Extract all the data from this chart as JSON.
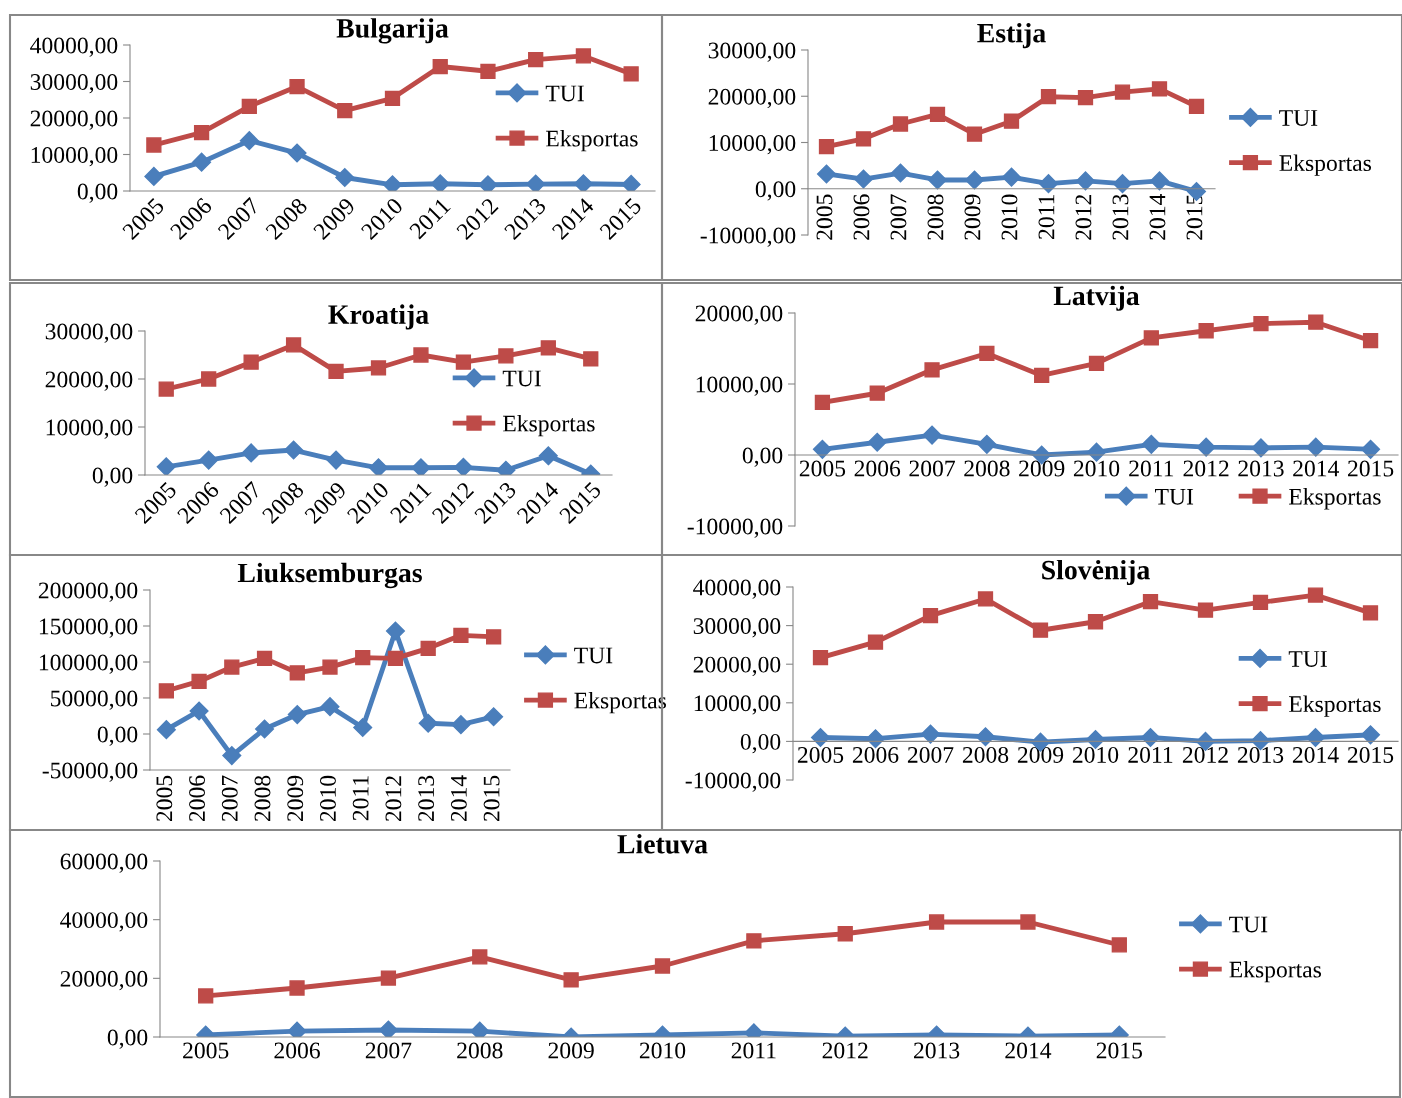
{
  "chart_data": [
    {
      "type": "line",
      "title": "Bulgarija",
      "categories": [
        "2005",
        "2006",
        "2007",
        "2008",
        "2009",
        "2010",
        "2011",
        "2012",
        "2013",
        "2014",
        "2015"
      ],
      "legend": "center right",
      "grid": false,
      "ylim": [
        0,
        40000
      ],
      "yticks": [
        {
          "value": 0,
          "label": "0,00"
        },
        {
          "value": 10000,
          "label": "10000,00"
        },
        {
          "value": 20000,
          "label": "20000,00"
        },
        {
          "value": 30000,
          "label": "30000,00"
        },
        {
          "value": 40000,
          "label": "40000,00"
        }
      ],
      "series": [
        {
          "name": "TUI",
          "color": "#4a7ebb",
          "marker": "diamond",
          "values": [
            4000,
            7900,
            13800,
            10400,
            3700,
            1700,
            2000,
            1700,
            1900,
            2000,
            1800
          ]
        },
        {
          "name": "Eksportas",
          "color": "#be4b48",
          "marker": "square",
          "values": [
            12600,
            16000,
            23200,
            28600,
            22000,
            25400,
            34100,
            32800,
            36000,
            37000,
            32100
          ]
        }
      ]
    },
    {
      "type": "line",
      "title": "Estija",
      "categories": [
        "2005",
        "2006",
        "2007",
        "2008",
        "2009",
        "2010",
        "2011",
        "2012",
        "2013",
        "2014",
        "2015"
      ],
      "legend": "right",
      "grid": false,
      "ylim": [
        -10000,
        30000
      ],
      "yticks": [
        {
          "value": -10000,
          "label": "-10000,00"
        },
        {
          "value": 0,
          "label": "0,00"
        },
        {
          "value": 10000,
          "label": "10000,00"
        },
        {
          "value": 20000,
          "label": "20000,00"
        },
        {
          "value": 30000,
          "label": "30000,00"
        }
      ],
      "series": [
        {
          "name": "TUI",
          "color": "#4a7ebb",
          "marker": "diamond",
          "values": [
            3200,
            2100,
            3400,
            1900,
            1900,
            2500,
            1100,
            1700,
            1100,
            1700,
            -600
          ]
        },
        {
          "name": "Eksportas",
          "color": "#be4b48",
          "marker": "square",
          "values": [
            9100,
            10800,
            14000,
            16100,
            11800,
            14600,
            19900,
            19700,
            20900,
            21600,
            17800
          ]
        }
      ]
    },
    {
      "type": "line",
      "title": "Kroatija",
      "categories": [
        "2005",
        "2006",
        "2007",
        "2008",
        "2009",
        "2010",
        "2011",
        "2012",
        "2013",
        "2014",
        "2015"
      ],
      "legend": "center right",
      "grid": false,
      "ylim": [
        0,
        30000
      ],
      "yticks": [
        {
          "value": 0,
          "label": "0,00"
        },
        {
          "value": 10000,
          "label": "10000,00"
        },
        {
          "value": 20000,
          "label": "20000,00"
        },
        {
          "value": 30000,
          "label": "30000,00"
        }
      ],
      "series": [
        {
          "name": "TUI",
          "color": "#4a7ebb",
          "marker": "diamond",
          "values": [
            1700,
            3100,
            4600,
            5200,
            3100,
            1500,
            1500,
            1600,
            1000,
            4000,
            200
          ]
        },
        {
          "name": "Eksportas",
          "color": "#be4b48",
          "marker": "square",
          "values": [
            17900,
            20000,
            23500,
            27100,
            21600,
            22300,
            25000,
            23500,
            24800,
            26500,
            24200
          ]
        }
      ]
    },
    {
      "type": "line",
      "title": "Latvija",
      "categories": [
        "2005",
        "2006",
        "2007",
        "2008",
        "2009",
        "2010",
        "2011",
        "2012",
        "2013",
        "2014",
        "2015"
      ],
      "legend": "bottom right",
      "grid": false,
      "ylim": [
        -10000,
        20000
      ],
      "yticks": [
        {
          "value": -10000,
          "label": "-10000,00"
        },
        {
          "value": 0,
          "label": "0,00"
        },
        {
          "value": 10000,
          "label": "10000,00"
        },
        {
          "value": 20000,
          "label": "20000,00"
        }
      ],
      "series": [
        {
          "name": "TUI",
          "color": "#4a7ebb",
          "marker": "diamond",
          "values": [
            800,
            1800,
            2800,
            1500,
            0,
            400,
            1500,
            1100,
            1000,
            1100,
            800
          ]
        },
        {
          "name": "Eksportas",
          "color": "#be4b48",
          "marker": "square",
          "values": [
            7400,
            8700,
            12000,
            14300,
            11200,
            12900,
            16500,
            17500,
            18500,
            18700,
            16100
          ]
        }
      ]
    },
    {
      "type": "line",
      "title": "Liuksemburgas",
      "categories": [
        "2005",
        "2006",
        "2007",
        "2008",
        "2009",
        "2010",
        "2011",
        "2012",
        "2013",
        "2014",
        "2015"
      ],
      "legend": "right",
      "grid": false,
      "ylim": [
        -50000,
        200000
      ],
      "yticks": [
        {
          "value": -50000,
          "label": "-50000,00"
        },
        {
          "value": 0,
          "label": "0,00"
        },
        {
          "value": 50000,
          "label": "50000,00"
        },
        {
          "value": 100000,
          "label": "100000,00"
        },
        {
          "value": 150000,
          "label": "150000,00"
        },
        {
          "value": 200000,
          "label": "200000,00"
        }
      ],
      "series": [
        {
          "name": "TUI",
          "color": "#4a7ebb",
          "marker": "diamond",
          "values": [
            6000,
            32000,
            -30000,
            7000,
            27000,
            38000,
            9000,
            143000,
            15000,
            13000,
            24000
          ]
        },
        {
          "name": "Eksportas",
          "color": "#be4b48",
          "marker": "square",
          "values": [
            60000,
            73000,
            93000,
            105000,
            85000,
            93000,
            106000,
            105000,
            119000,
            137000,
            135000
          ]
        }
      ]
    },
    {
      "type": "line",
      "title": "Slovėnija",
      "categories": [
        "2005",
        "2006",
        "2007",
        "2008",
        "2009",
        "2010",
        "2011",
        "2012",
        "2013",
        "2014",
        "2015"
      ],
      "legend": "center right",
      "grid": false,
      "ylim": [
        -10000,
        40000
      ],
      "yticks": [
        {
          "value": -10000,
          "label": "-10000,00"
        },
        {
          "value": 0,
          "label": "0,00"
        },
        {
          "value": 10000,
          "label": "10000,00"
        },
        {
          "value": 20000,
          "label": "20000,00"
        },
        {
          "value": 30000,
          "label": "30000,00"
        },
        {
          "value": 40000,
          "label": "40000,00"
        }
      ],
      "series": [
        {
          "name": "TUI",
          "color": "#4a7ebb",
          "marker": "diamond",
          "values": [
            1000,
            700,
            1900,
            1200,
            -200,
            500,
            1000,
            0,
            200,
            1000,
            1700
          ]
        },
        {
          "name": "Eksportas",
          "color": "#be4b48",
          "marker": "square",
          "values": [
            21700,
            25700,
            32600,
            36900,
            28800,
            31000,
            36200,
            34000,
            36000,
            37900,
            33300
          ]
        }
      ]
    },
    {
      "type": "line",
      "title": "Lietuva",
      "categories": [
        "2005",
        "2006",
        "2007",
        "2008",
        "2009",
        "2010",
        "2011",
        "2012",
        "2013",
        "2014",
        "2015"
      ],
      "legend": "right",
      "grid": false,
      "ylim": [
        0,
        60000
      ],
      "yticks": [
        {
          "value": 0,
          "label": "0,00"
        },
        {
          "value": 20000,
          "label": "20000,00"
        },
        {
          "value": 40000,
          "label": "40000,00"
        },
        {
          "value": 60000,
          "label": "60000,00"
        }
      ],
      "series": [
        {
          "name": "TUI",
          "color": "#4a7ebb",
          "marker": "diamond",
          "values": [
            700,
            2000,
            2400,
            2000,
            0,
            700,
            1400,
            300,
            700,
            300,
            700
          ]
        },
        {
          "name": "Eksportas",
          "color": "#be4b48",
          "marker": "square",
          "values": [
            14000,
            16700,
            20100,
            27300,
            19500,
            24200,
            32800,
            35200,
            39200,
            39200,
            31400
          ]
        }
      ]
    }
  ]
}
